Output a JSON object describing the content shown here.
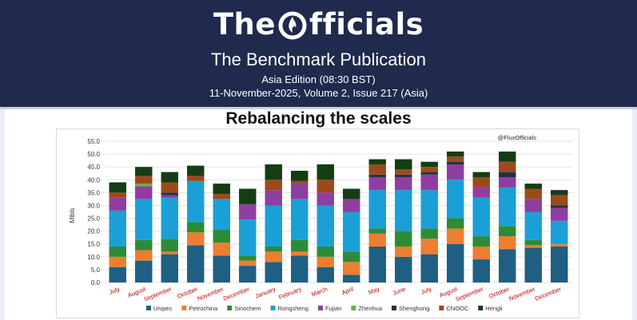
{
  "header": {
    "brand_pre": "The ",
    "brand_post": "fficials",
    "publication": "The Benchmark Publication",
    "edition": "Asia Edition (08:30 BST)",
    "issue": "11-November-2025, Volume 2, Issue 217 (Asia)"
  },
  "colors": {
    "banner": "#1f2a4c"
  },
  "chart_data": {
    "type": "bar",
    "stacked": true,
    "title": "Rebalancing the scales",
    "credit": "@FluxOfficials",
    "xlabel": "",
    "ylabel": "Mlbls",
    "ylim": [
      0,
      55
    ],
    "ytick_step": 5,
    "ytick_labels": [
      "0.0",
      "5.0",
      "10.0",
      "15.0",
      "20.0",
      "25.0",
      "30.0",
      "35.0",
      "40.0",
      "45.0",
      "50.0",
      "55.0"
    ],
    "categories": [
      "July",
      "August",
      "September",
      "October",
      "November",
      "December",
      "January",
      "February",
      "March",
      "April",
      "May",
      "June",
      "July",
      "August",
      "September",
      "October",
      "November",
      "December"
    ],
    "series": [
      {
        "name": "Unipec",
        "color": "#1f5f82",
        "values": [
          6,
          8.5,
          11,
          14.5,
          10.5,
          6.5,
          8,
          10.5,
          6,
          3,
          14,
          10,
          11,
          15,
          9,
          13,
          13.5,
          14
        ]
      },
      {
        "name": "Petrochina",
        "color": "#ed7d31",
        "values": [
          4,
          4,
          1,
          5,
          5,
          2,
          4,
          1.5,
          4,
          5,
          5,
          4,
          6,
          6,
          5,
          5,
          1,
          1
        ]
      },
      {
        "name": "Sinochem",
        "color": "#2e8b35",
        "values": [
          4,
          4,
          5,
          4,
          5,
          2,
          2,
          4.5,
          4,
          4,
          2,
          6,
          4,
          4,
          4,
          4,
          2,
          0
        ]
      },
      {
        "name": "Rongsheng",
        "color": "#1aa0d6",
        "values": [
          14,
          16,
          16,
          16,
          12,
          14,
          16,
          16,
          16,
          15.5,
          15,
          16,
          15,
          15,
          15,
          15,
          11,
          9
        ]
      },
      {
        "name": "Fujian",
        "color": "#8e3ea0",
        "values": [
          5,
          5,
          1,
          0,
          0,
          6,
          6,
          6,
          5,
          5,
          5,
          5,
          6,
          6,
          4,
          4,
          5,
          5
        ]
      },
      {
        "name": "Zhenhua",
        "color": "#70ad47",
        "values": [
          0,
          1,
          0,
          0,
          0,
          0,
          0,
          0,
          0,
          0,
          0,
          0,
          0,
          0,
          0,
          0,
          0,
          0
        ]
      },
      {
        "name": "Shenghong",
        "color": "#1f3346",
        "values": [
          0,
          0,
          1,
          0,
          0,
          0,
          0,
          0,
          0,
          0,
          1,
          1,
          1,
          1,
          0,
          2,
          0,
          1
        ]
      },
      {
        "name": "CNOOC",
        "color": "#9c4a1c",
        "values": [
          2,
          3,
          4,
          2,
          2,
          0,
          4,
          1,
          5,
          0,
          4,
          2,
          2,
          2,
          4,
          4,
          4,
          4
        ]
      },
      {
        "name": "Hengli",
        "color": "#143d14",
        "values": [
          4,
          3.5,
          4,
          4,
          4,
          6,
          6,
          4,
          6,
          4,
          2,
          4,
          2,
          2,
          2,
          4,
          2,
          2
        ]
      }
    ]
  }
}
